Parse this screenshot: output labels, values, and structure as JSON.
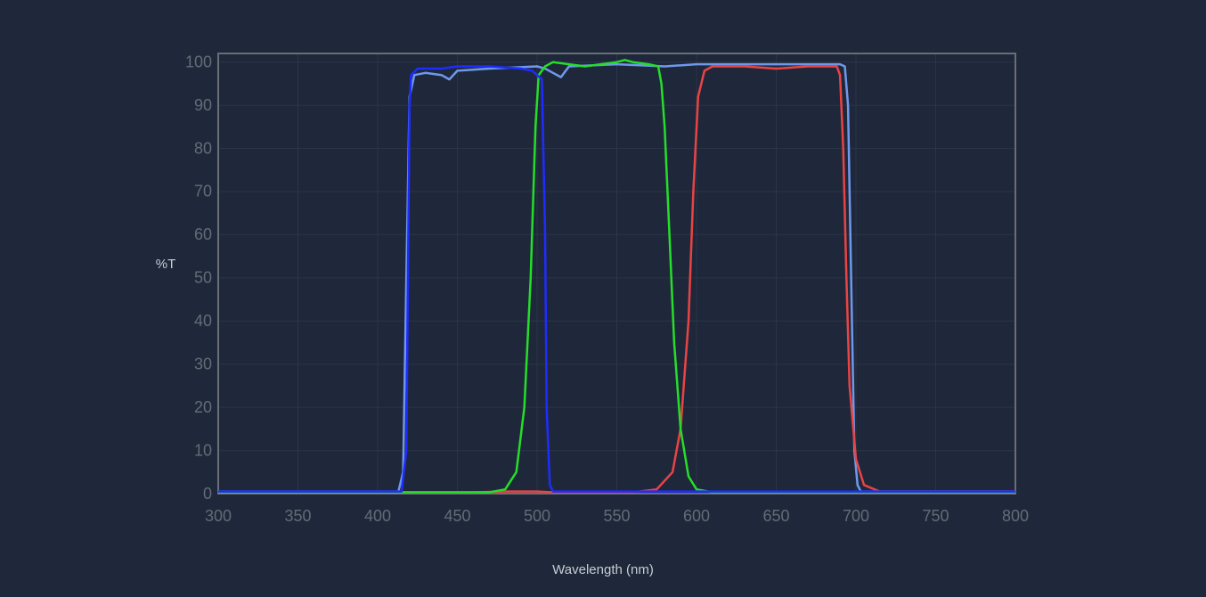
{
  "chart_data": {
    "type": "line",
    "x_label": "Wavelength (nm)",
    "y_label": "%T",
    "xlim": [
      300,
      800
    ],
    "ylim": [
      0,
      102
    ],
    "xticks": [
      300,
      350,
      400,
      450,
      500,
      550,
      600,
      650,
      700,
      750,
      800
    ],
    "yticks": [
      0,
      10,
      20,
      30,
      40,
      50,
      60,
      70,
      80,
      90,
      100
    ],
    "grid": true,
    "series": [
      {
        "color": "#6f98ec",
        "x": [
          300,
          413,
          416,
          418,
          420,
          423,
          430,
          440,
          445,
          450,
          470,
          500,
          505,
          510,
          515,
          520,
          550,
          580,
          600,
          650,
          690,
          693,
          695,
          697,
          699,
          701,
          703,
          800
        ],
        "values": [
          0.5,
          0.5,
          5,
          50,
          92,
          97,
          97.5,
          97,
          96,
          98,
          98.5,
          99,
          98.5,
          97.5,
          96.5,
          99,
          99.5,
          99,
          99.5,
          99.5,
          99.5,
          99,
          90,
          50,
          10,
          2,
          0.5,
          0.5
        ]
      },
      {
        "color": "#e84444",
        "x": [
          300,
          460,
          480,
          500,
          510,
          560,
          575,
          585,
          590,
          595,
          598,
          601,
          605,
          610,
          630,
          650,
          670,
          688,
          690,
          692,
          694,
          696,
          700,
          705,
          715,
          800
        ],
        "values": [
          0.3,
          0.3,
          0.5,
          0.5,
          0.3,
          0.3,
          1,
          5,
          15,
          40,
          70,
          92,
          98,
          99,
          99,
          98.5,
          99,
          99,
          97,
          80,
          50,
          25,
          8,
          2,
          0.5,
          0.5
        ]
      },
      {
        "color": "#25dd2a",
        "x": [
          300,
          470,
          480,
          487,
          492,
          496,
          499,
          501,
          505,
          510,
          520,
          530,
          540,
          550,
          555,
          560,
          570,
          576,
          578,
          580,
          583,
          586,
          590,
          595,
          600,
          610,
          800
        ],
        "values": [
          0.3,
          0.3,
          1,
          5,
          20,
          50,
          85,
          97,
          99,
          100,
          99.5,
          99,
          99.5,
          100,
          100.5,
          100,
          99.5,
          99,
          95,
          85,
          60,
          35,
          15,
          4,
          1,
          0.3,
          0.3
        ]
      },
      {
        "color": "#1f2cff",
        "x": [
          300,
          415,
          418,
          419,
          420,
          421,
          425,
          440,
          450,
          470,
          490,
          497,
          500,
          503,
          505,
          506,
          508,
          510,
          800
        ],
        "values": [
          0.5,
          0.5,
          10,
          50,
          90,
          97,
          98.5,
          98.5,
          99,
          99,
          98.5,
          98,
          97,
          96,
          60,
          20,
          2,
          0.5,
          0.5
        ]
      }
    ]
  }
}
